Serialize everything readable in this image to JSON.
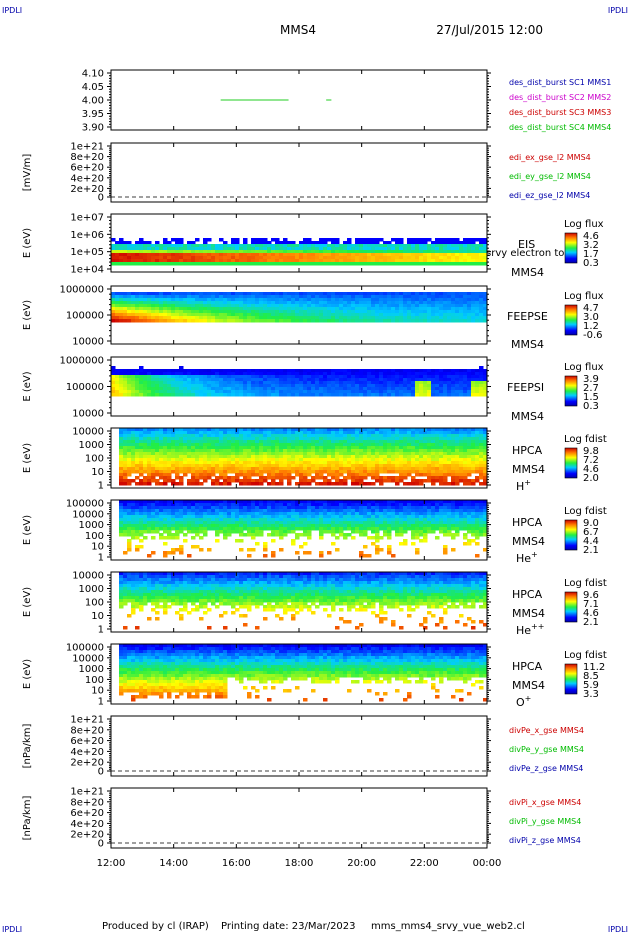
{
  "header": {
    "corner_label": "IPDLI",
    "spacecraft": "MMS4",
    "date_time": "27/Jul/2015 12:00"
  },
  "footer": {
    "produced_by": "Produced by cl (IRAP)",
    "printing_date": "Printing date: 23/Mar/2023",
    "script_name": "mms_mms4_srvy_vue_web2.cl"
  },
  "colors": {
    "frame": "#000000",
    "red_label": "#cc0000",
    "green_label": "#00bb00",
    "blue_label": "#0000aa",
    "magenta_label": "#cc00cc",
    "des_series": "#22cc22"
  },
  "chart_data": [
    {
      "type": "line",
      "id": "des_dist_burst",
      "yticks": [
        "4.10",
        "4.05",
        "4.00",
        "3.95",
        "3.90"
      ],
      "ylim": [
        3.9,
        4.1
      ],
      "legend": [
        {
          "text": "des_dist_burst SC1 MMS1",
          "color": "#0000aa"
        },
        {
          "text": "des_dist_burst SC2 MMS2",
          "color": "#cc00cc"
        },
        {
          "text": "des_dist_burst SC3 MMS3",
          "color": "#cc0000"
        },
        {
          "text": "des_dist_burst SC4 MMS4",
          "color": "#00bb00"
        }
      ],
      "segments": [
        {
          "x_start": "15:30",
          "x_end": "17:40",
          "y": 4.0
        },
        {
          "x_start": "18:52",
          "x_end": "19:02",
          "y": 4.0
        }
      ]
    },
    {
      "type": "line",
      "id": "edi_e",
      "ylabel": "[mV/m]",
      "yticks": [
        "1e+21",
        "8e+20",
        "6e+20",
        "4e+20",
        "2e+20",
        "0"
      ],
      "legend": [
        {
          "text": "edi_ex_gse_l2 MMS4",
          "color": "#cc0000"
        },
        {
          "text": "edi_ey_gse_l2 MMS4",
          "color": "#00bb00"
        },
        {
          "text": "edi_ez_gse_l2 MMS4",
          "color": "#0000aa"
        }
      ]
    },
    {
      "type": "heatmap",
      "id": "eis",
      "ylabel": "E (eV)",
      "yticks": [
        "1e+07",
        "1e+06",
        "1e+05",
        "1e+04"
      ],
      "instrument": "EIS",
      "overlay_label": "srvy electron to",
      "spacecraft": "MMS4",
      "colorbar_title": "Log flux",
      "colorbar_ticks": [
        "4.6",
        "3.2",
        "1.7",
        "0.3"
      ]
    },
    {
      "type": "heatmap",
      "id": "feeps_e",
      "ylabel": "E (eV)",
      "yticks": [
        "1000000",
        "100000",
        "10000"
      ],
      "instrument": "FEEPSE",
      "spacecraft": "MMS4",
      "colorbar_title": "Log flux",
      "colorbar_ticks": [
        "4.7",
        "3.0",
        "1.2",
        "-0.6"
      ]
    },
    {
      "type": "heatmap",
      "id": "feeps_i",
      "ylabel": "E (eV)",
      "yticks": [
        "1000000",
        "100000",
        "10000"
      ],
      "instrument": "FEEPSI",
      "spacecraft": "MMS4",
      "colorbar_title": "Log flux",
      "colorbar_ticks": [
        "3.9",
        "2.7",
        "1.5",
        "0.3"
      ]
    },
    {
      "type": "heatmap",
      "id": "hpca_h",
      "ylabel": "E (eV)",
      "yticks": [
        "10000",
        "1000",
        "100",
        "10",
        "1"
      ],
      "instrument": "HPCA",
      "spacecraft": "MMS4",
      "species": "H",
      "species_charge": "+",
      "colorbar_title": "Log fdist",
      "colorbar_ticks": [
        "9.8",
        "7.2",
        "4.6",
        "2.0"
      ]
    },
    {
      "type": "heatmap",
      "id": "hpca_he",
      "ylabel": "E (eV)",
      "yticks": [
        "100000",
        "10000",
        "1000",
        "100",
        "10",
        "1"
      ],
      "instrument": "HPCA",
      "spacecraft": "MMS4",
      "species": "He",
      "species_charge": "+",
      "colorbar_title": "Log fdist",
      "colorbar_ticks": [
        "9.0",
        "6.7",
        "4.4",
        "2.1"
      ]
    },
    {
      "type": "heatmap",
      "id": "hpca_hepp",
      "ylabel": "E (eV)",
      "yticks": [
        "10000",
        "1000",
        "100",
        "10",
        "1"
      ],
      "instrument": "HPCA",
      "spacecraft": "MMS4",
      "species": "He",
      "species_charge": "++",
      "colorbar_title": "Log fdist",
      "colorbar_ticks": [
        "9.6",
        "7.1",
        "4.6",
        "2.1"
      ]
    },
    {
      "type": "heatmap",
      "id": "hpca_o",
      "ylabel": "E (eV)",
      "yticks": [
        "100000",
        "10000",
        "1000",
        "100",
        "10",
        "1"
      ],
      "instrument": "HPCA",
      "spacecraft": "MMS4",
      "species": "O",
      "species_charge": "+",
      "colorbar_title": "Log fdist",
      "colorbar_ticks": [
        "11.2",
        "8.5",
        "5.9",
        "3.3"
      ]
    },
    {
      "type": "line",
      "id": "divpe",
      "ylabel": "[nPa/km]",
      "yticks": [
        "1e+21",
        "8e+20",
        "6e+20",
        "4e+20",
        "2e+20",
        "0"
      ],
      "legend": [
        {
          "text": "divPe_x_gse MMS4",
          "color": "#cc0000"
        },
        {
          "text": "divPe_y_gse MMS4",
          "color": "#00bb00"
        },
        {
          "text": "divPe_z_gse MMS4",
          "color": "#0000aa"
        }
      ]
    },
    {
      "type": "line",
      "id": "divpi",
      "ylabel": "[nPa/km]",
      "yticks": [
        "1e+21",
        "8e+20",
        "6e+20",
        "4e+20",
        "2e+20",
        "0"
      ],
      "legend": [
        {
          "text": "divPi_x_gse MMS4",
          "color": "#cc0000"
        },
        {
          "text": "divPi_y_gse MMS4",
          "color": "#00bb00"
        },
        {
          "text": "divPi_z_gse MMS4",
          "color": "#0000aa"
        }
      ]
    }
  ],
  "time_axis": {
    "ticks": [
      "12:00",
      "14:00",
      "16:00",
      "18:00",
      "20:00",
      "22:00",
      "00:00"
    ]
  }
}
